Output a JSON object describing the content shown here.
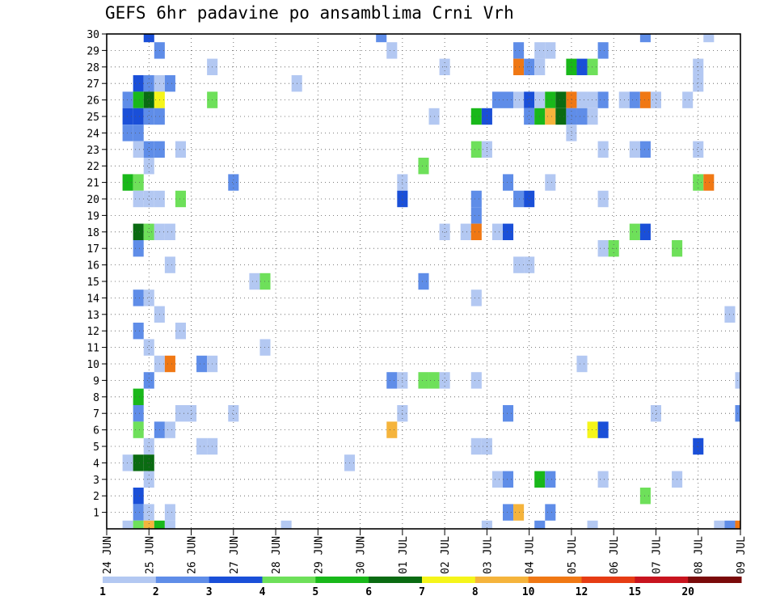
{
  "chart_data": {
    "type": "heatmap",
    "title": "GEFS 6hr padavine po ansamblima Crni Vrh",
    "xlabel": "",
    "ylabel": "",
    "x_tick_labels": [
      "24 JUN",
      "25 JUN",
      "26 JUN",
      "27 JUN",
      "28 JUN",
      "29 JUN",
      "30 JUN",
      "01 JUL",
      "02 JUL",
      "03 JUL",
      "04 JUL",
      "05 JUL",
      "06 JUL",
      "07 JUL",
      "08 JUL",
      "09 JUL"
    ],
    "y_tick_labels": [
      "1",
      "2",
      "3",
      "4",
      "5",
      "6",
      "7",
      "8",
      "9",
      "10",
      "11",
      "12",
      "13",
      "14",
      "15",
      "16",
      "17",
      "18",
      "19",
      "20",
      "21",
      "22",
      "23",
      "24",
      "25",
      "26",
      "27",
      "28",
      "29",
      "30"
    ],
    "ylim": [
      0,
      30
    ],
    "x_steps_per_day": 4,
    "x_total_steps": 60,
    "grid": true,
    "legend_position": "bottom",
    "color_levels": [
      {
        "label": "1",
        "color": "#b3c8f2"
      },
      {
        "label": "2",
        "color": "#5f8de8"
      },
      {
        "label": "3",
        "color": "#1a4fd8"
      },
      {
        "label": "4",
        "color": "#6ee05a"
      },
      {
        "label": "5",
        "color": "#19b81a"
      },
      {
        "label": "6",
        "color": "#0a6b12"
      },
      {
        "label": "7",
        "color": "#f5f51a"
      },
      {
        "label": "8",
        "color": "#f5b43c"
      },
      {
        "label": "10",
        "color": "#f07814"
      },
      {
        "label": "12",
        "color": "#e63c14"
      },
      {
        "label": "15",
        "color": "#c8141e"
      },
      {
        "label": "20",
        "color": "#7a0a0a"
      }
    ],
    "cells_note": "each cell: [member, time_step (6h steps from 24 JUN 00z), color_level_index 0-11]",
    "cells": [
      [
        30,
        4,
        2
      ],
      [
        30,
        26,
        1
      ],
      [
        30,
        51,
        1
      ],
      [
        30,
        57,
        0
      ],
      [
        29,
        5,
        1
      ],
      [
        29,
        27,
        0
      ],
      [
        29,
        39,
        1
      ],
      [
        29,
        41,
        0
      ],
      [
        29,
        42,
        0
      ],
      [
        29,
        47,
        1
      ],
      [
        28,
        10,
        0
      ],
      [
        28,
        32,
        0
      ],
      [
        28,
        39,
        8
      ],
      [
        28,
        40,
        1
      ],
      [
        28,
        41,
        0
      ],
      [
        28,
        44,
        4
      ],
      [
        28,
        45,
        2
      ],
      [
        28,
        46,
        3
      ],
      [
        28,
        56,
        0
      ],
      [
        27,
        3,
        2
      ],
      [
        27,
        4,
        1
      ],
      [
        27,
        5,
        0
      ],
      [
        27,
        6,
        1
      ],
      [
        27,
        18,
        0
      ],
      [
        27,
        56,
        0
      ],
      [
        26,
        2,
        1
      ],
      [
        26,
        3,
        4
      ],
      [
        26,
        4,
        5
      ],
      [
        26,
        5,
        6
      ],
      [
        26,
        10,
        3
      ],
      [
        26,
        37,
        1
      ],
      [
        26,
        38,
        1
      ],
      [
        26,
        39,
        0
      ],
      [
        26,
        40,
        2
      ],
      [
        26,
        41,
        0
      ],
      [
        26,
        42,
        4
      ],
      [
        26,
        43,
        5
      ],
      [
        26,
        44,
        8
      ],
      [
        26,
        45,
        0
      ],
      [
        26,
        46,
        0
      ],
      [
        26,
        47,
        1
      ],
      [
        26,
        49,
        0
      ],
      [
        26,
        50,
        1
      ],
      [
        26,
        51,
        8
      ],
      [
        26,
        52,
        0
      ],
      [
        26,
        55,
        0
      ],
      [
        25,
        2,
        2
      ],
      [
        25,
        3,
        2
      ],
      [
        25,
        4,
        1
      ],
      [
        25,
        5,
        1
      ],
      [
        25,
        31,
        0
      ],
      [
        25,
        35,
        4
      ],
      [
        25,
        36,
        2
      ],
      [
        25,
        40,
        1
      ],
      [
        25,
        41,
        4
      ],
      [
        25,
        42,
        7
      ],
      [
        25,
        43,
        5
      ],
      [
        25,
        44,
        1
      ],
      [
        25,
        45,
        1
      ],
      [
        25,
        46,
        0
      ],
      [
        24,
        2,
        1
      ],
      [
        24,
        3,
        1
      ],
      [
        24,
        44,
        0
      ],
      [
        23,
        3,
        0
      ],
      [
        23,
        4,
        1
      ],
      [
        23,
        5,
        1
      ],
      [
        23,
        7,
        0
      ],
      [
        23,
        35,
        3
      ],
      [
        23,
        36,
        0
      ],
      [
        23,
        47,
        0
      ],
      [
        23,
        50,
        0
      ],
      [
        23,
        51,
        1
      ],
      [
        23,
        56,
        0
      ],
      [
        22,
        4,
        0
      ],
      [
        22,
        30,
        3
      ],
      [
        21,
        2,
        4
      ],
      [
        21,
        3,
        3
      ],
      [
        21,
        12,
        1
      ],
      [
        21,
        28,
        0
      ],
      [
        21,
        38,
        1
      ],
      [
        21,
        42,
        0
      ],
      [
        21,
        56,
        3
      ],
      [
        21,
        57,
        8
      ],
      [
        20,
        3,
        0
      ],
      [
        20,
        4,
        0
      ],
      [
        20,
        5,
        0
      ],
      [
        20,
        7,
        3
      ],
      [
        20,
        28,
        2
      ],
      [
        20,
        35,
        1
      ],
      [
        20,
        39,
        1
      ],
      [
        20,
        40,
        2
      ],
      [
        20,
        47,
        0
      ],
      [
        19,
        35,
        1
      ],
      [
        18,
        3,
        5
      ],
      [
        18,
        4,
        3
      ],
      [
        18,
        5,
        0
      ],
      [
        18,
        6,
        0
      ],
      [
        18,
        32,
        0
      ],
      [
        18,
        34,
        0
      ],
      [
        18,
        35,
        8
      ],
      [
        18,
        37,
        0
      ],
      [
        18,
        38,
        2
      ],
      [
        18,
        50,
        3
      ],
      [
        18,
        51,
        2
      ],
      [
        17,
        3,
        1
      ],
      [
        17,
        47,
        0
      ],
      [
        17,
        48,
        3
      ],
      [
        17,
        54,
        3
      ],
      [
        16,
        6,
        0
      ],
      [
        16,
        39,
        0
      ],
      [
        16,
        40,
        0
      ],
      [
        15,
        14,
        0
      ],
      [
        15,
        15,
        3
      ],
      [
        15,
        30,
        1
      ],
      [
        14,
        3,
        1
      ],
      [
        14,
        4,
        0
      ],
      [
        14,
        35,
        0
      ],
      [
        13,
        5,
        0
      ],
      [
        13,
        59,
        0
      ],
      [
        12,
        3,
        1
      ],
      [
        12,
        7,
        0
      ],
      [
        11,
        4,
        0
      ],
      [
        11,
        15,
        0
      ],
      [
        10,
        5,
        0
      ],
      [
        10,
        6,
        8
      ],
      [
        10,
        9,
        1
      ],
      [
        10,
        10,
        0
      ],
      [
        10,
        45,
        0
      ],
      [
        9,
        4,
        1
      ],
      [
        9,
        27,
        1
      ],
      [
        9,
        28,
        0
      ],
      [
        9,
        30,
        3
      ],
      [
        9,
        31,
        3
      ],
      [
        9,
        32,
        0
      ],
      [
        9,
        35,
        0
      ],
      [
        9,
        60,
        0
      ],
      [
        8,
        3,
        4
      ],
      [
        7,
        3,
        1
      ],
      [
        7,
        7,
        0
      ],
      [
        7,
        8,
        0
      ],
      [
        7,
        12,
        0
      ],
      [
        7,
        28,
        0
      ],
      [
        7,
        38,
        1
      ],
      [
        7,
        52,
        0
      ],
      [
        7,
        60,
        1
      ],
      [
        6,
        3,
        3
      ],
      [
        6,
        5,
        1
      ],
      [
        6,
        6,
        0
      ],
      [
        6,
        27,
        7
      ],
      [
        6,
        46,
        6
      ],
      [
        6,
        47,
        2
      ],
      [
        5,
        4,
        0
      ],
      [
        5,
        9,
        0
      ],
      [
        5,
        10,
        0
      ],
      [
        5,
        35,
        0
      ],
      [
        5,
        36,
        0
      ],
      [
        5,
        56,
        2
      ],
      [
        4,
        2,
        0
      ],
      [
        4,
        3,
        5
      ],
      [
        4,
        4,
        5
      ],
      [
        4,
        23,
        0
      ],
      [
        3,
        4,
        0
      ],
      [
        3,
        37,
        0
      ],
      [
        3,
        38,
        1
      ],
      [
        3,
        41,
        4
      ],
      [
        3,
        42,
        1
      ],
      [
        3,
        47,
        0
      ],
      [
        3,
        54,
        0
      ],
      [
        2,
        3,
        2
      ],
      [
        2,
        51,
        3
      ],
      [
        1,
        3,
        1
      ],
      [
        1,
        4,
        0
      ],
      [
        1,
        6,
        0
      ],
      [
        1,
        38,
        1
      ],
      [
        1,
        39,
        7
      ],
      [
        1,
        42,
        1
      ],
      [
        0,
        2,
        0
      ],
      [
        0,
        3,
        3
      ],
      [
        0,
        4,
        7
      ],
      [
        0,
        5,
        4
      ],
      [
        0,
        6,
        0
      ],
      [
        0,
        17,
        0
      ],
      [
        0,
        36,
        0
      ],
      [
        0,
        41,
        1
      ],
      [
        0,
        46,
        0
      ],
      [
        0,
        58,
        0
      ],
      [
        0,
        59,
        1
      ],
      [
        0,
        60,
        8
      ]
    ]
  }
}
